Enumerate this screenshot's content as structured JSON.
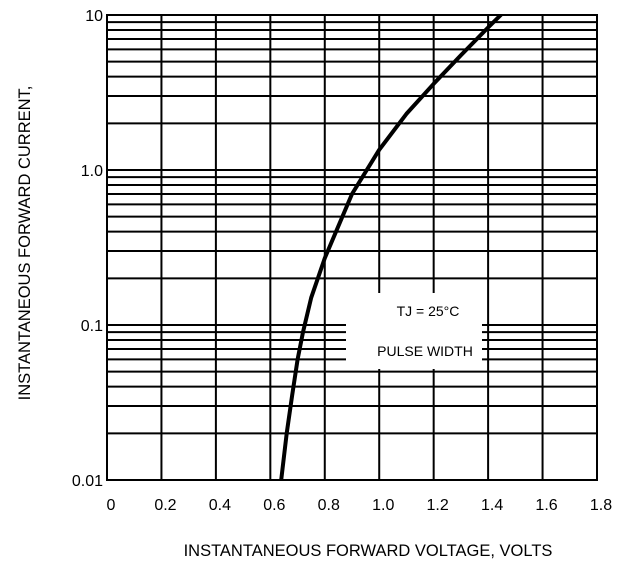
{
  "chart_data": {
    "type": "line",
    "title": "",
    "xlabel": "INSTANTANEOUS FORWARD VOLTAGE, VOLTS",
    "ylabel": "INSTANTANEOUS FORWARD CURRENT,",
    "xlim": [
      0,
      1.8
    ],
    "ylim": [
      0.01,
      10
    ],
    "yscale": "log",
    "grid": true,
    "x_ticks": [
      "0",
      "0.2",
      "0.4",
      "0.6",
      "0.8",
      "1.0",
      "1.2",
      "1.4",
      "1.6",
      "1.8"
    ],
    "y_ticks": [
      "0.01",
      "0.1",
      "1.0",
      "10"
    ],
    "annotations": [
      "TJ = 25°C",
      "PULSE WIDTH"
    ],
    "series": [
      {
        "x": [
          0.64,
          0.66,
          0.68,
          0.7,
          0.72,
          0.75,
          0.8,
          0.9,
          1.0,
          1.1,
          1.2,
          1.3,
          1.4,
          1.47
        ],
        "y": [
          0.01,
          0.02,
          0.035,
          0.06,
          0.09,
          0.15,
          0.27,
          0.7,
          1.35,
          2.3,
          3.6,
          5.5,
          8.3,
          11.0
        ]
      }
    ],
    "colors": {
      "line": "#000000",
      "grid": "#000000",
      "background": "#ffffff"
    }
  }
}
